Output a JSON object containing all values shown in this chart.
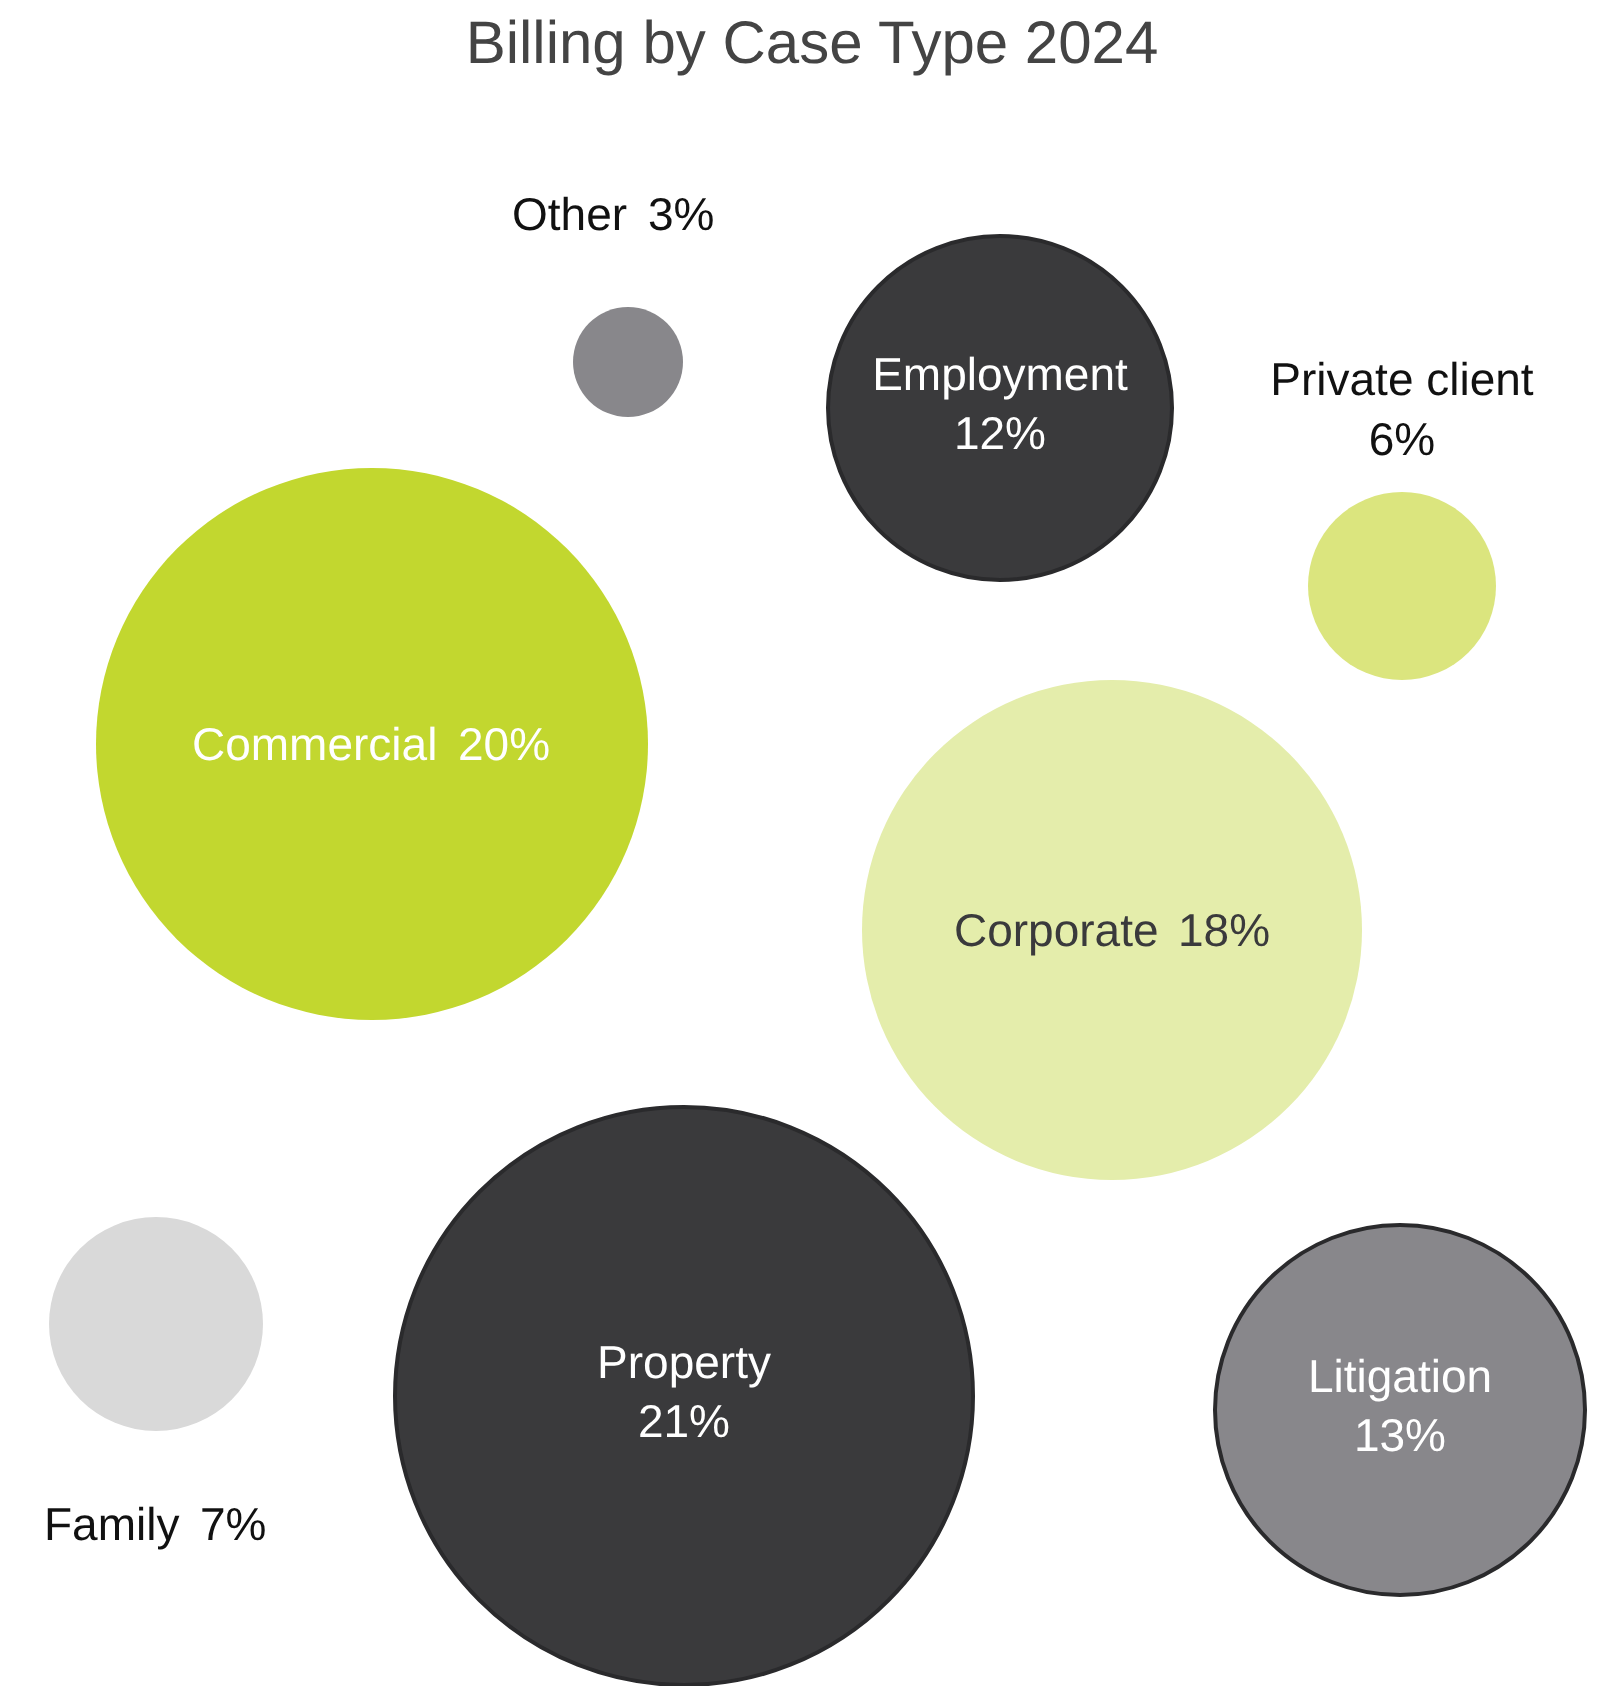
{
  "chart_data": {
    "type": "other",
    "title": "Billing by Case Type 2024",
    "categories": [
      "Other",
      "Employment",
      "Private client",
      "Commercial",
      "Corporate",
      "Family",
      "Property",
      "Litigation"
    ],
    "values": [
      3,
      12,
      6,
      20,
      18,
      7,
      21,
      13
    ],
    "value_labels": [
      "3%",
      "12%",
      "6%",
      "20%",
      "18%",
      "7%",
      "21%",
      "13%"
    ],
    "colors": [
      "#88878b",
      "#3a3a3c",
      "#dbe57e",
      "#c2d72f",
      "#e4edab",
      "#d9d9d9",
      "#3a3a3c",
      "#88878b"
    ]
  }
}
